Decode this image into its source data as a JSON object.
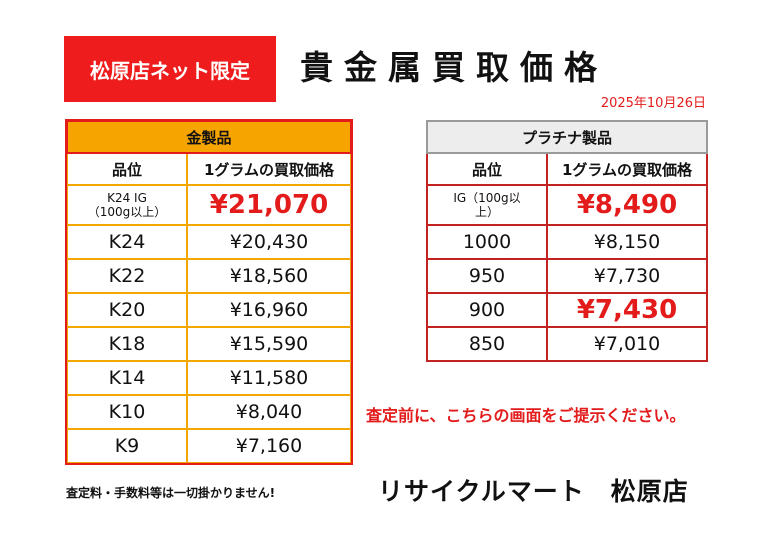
{
  "header": {
    "badge": "松原店ネット限定",
    "title": "貴金属買取価格",
    "date": "2025年10月26日"
  },
  "gold": {
    "title": "金製品",
    "col_grade": "品位",
    "col_price": "1グラムの買取価格",
    "rows": [
      {
        "grade": "K24 IG\n（100g以上）",
        "price": "¥21,070"
      },
      {
        "grade": "K24",
        "price": "¥20,430"
      },
      {
        "grade": "K22",
        "price": "¥18,560"
      },
      {
        "grade": "K20",
        "price": "¥16,960"
      },
      {
        "grade": "K18",
        "price": "¥15,590"
      },
      {
        "grade": "K14",
        "price": "¥11,580"
      },
      {
        "grade": "K10",
        "price": "¥8,040"
      },
      {
        "grade": "K9",
        "price": "¥7,160"
      }
    ]
  },
  "platinum": {
    "title": "プラチナ製品",
    "col_grade": "品位",
    "col_price": "1グラムの買取価格",
    "rows": [
      {
        "grade": "IG（100g以\n上）",
        "price": "¥8,490"
      },
      {
        "grade": "1000",
        "price": "¥8,150"
      },
      {
        "grade": "950",
        "price": "¥7,730"
      },
      {
        "grade": "900",
        "price": "¥7,430"
      },
      {
        "grade": "850",
        "price": "¥7,010"
      }
    ]
  },
  "notice": "査定前に、こちらの画面をご提示ください。",
  "footer": {
    "note": "査定料・手数料等は一切掛かりません!",
    "store": "リサイクルマート　松原店"
  },
  "colors": {
    "red": "#e31b1b",
    "gold_header": "#f5a400",
    "platinum_header": "#ededed"
  }
}
